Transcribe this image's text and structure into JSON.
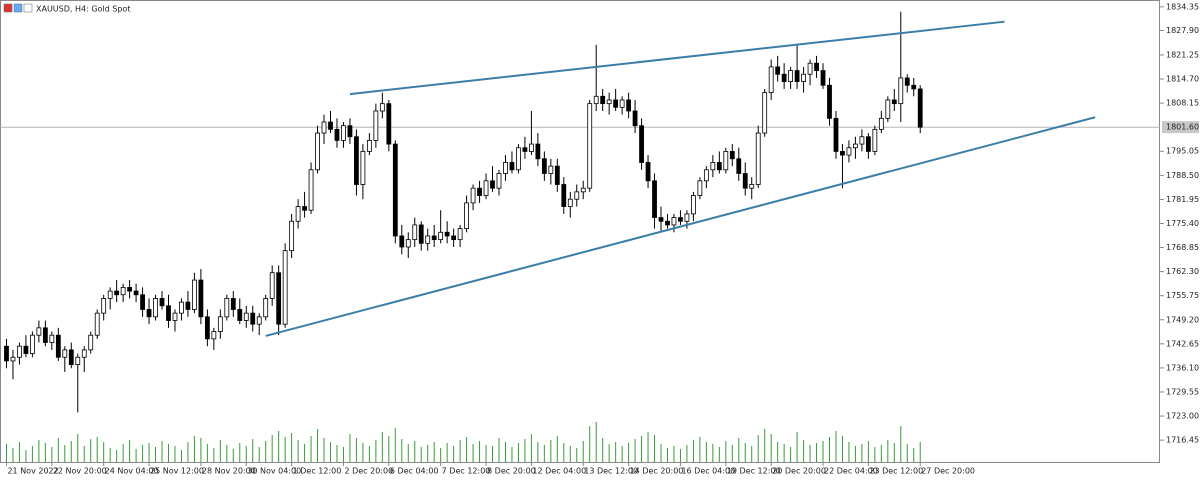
{
  "chart_data": {
    "type": "candlestick",
    "title": "XAUUSD, H4:  Gold Spot",
    "ohlc": [
      [
        1742,
        1744,
        1736,
        1738
      ],
      [
        1738,
        1741,
        1733,
        1739
      ],
      [
        1739,
        1743,
        1737,
        1742
      ],
      [
        1742,
        1745,
        1739,
        1740
      ],
      [
        1740,
        1746,
        1739,
        1745
      ],
      [
        1745,
        1749,
        1743,
        1747
      ],
      [
        1747,
        1749,
        1742,
        1743
      ],
      [
        1743,
        1746,
        1741,
        1745
      ],
      [
        1745,
        1747,
        1738,
        1739
      ],
      [
        1739,
        1742,
        1735,
        1741
      ],
      [
        1741,
        1743,
        1736,
        1737
      ],
      [
        1737,
        1740,
        1724,
        1739
      ],
      [
        1739,
        1742,
        1735,
        1741
      ],
      [
        1741,
        1746,
        1740,
        1745
      ],
      [
        1745,
        1752,
        1744,
        1751
      ],
      [
        1751,
        1756,
        1749,
        1755
      ],
      [
        1755,
        1758,
        1752,
        1757
      ],
      [
        1757,
        1760,
        1754,
        1756
      ],
      [
        1756,
        1759,
        1754,
        1758
      ],
      [
        1758,
        1760,
        1755,
        1757
      ],
      [
        1757,
        1759,
        1754,
        1756
      ],
      [
        1756,
        1758,
        1750,
        1752
      ],
      [
        1752,
        1755,
        1748,
        1750
      ],
      [
        1750,
        1756,
        1749,
        1755
      ],
      [
        1755,
        1757,
        1752,
        1753
      ],
      [
        1753,
        1756,
        1747,
        1749
      ],
      [
        1749,
        1752,
        1746,
        1751
      ],
      [
        1751,
        1755,
        1749,
        1754
      ],
      [
        1754,
        1757,
        1750,
        1752
      ],
      [
        1752,
        1762,
        1751,
        1760
      ],
      [
        1760,
        1763,
        1748,
        1750
      ],
      [
        1750,
        1752,
        1742,
        1744
      ],
      [
        1744,
        1747,
        1741,
        1746
      ],
      [
        1746,
        1752,
        1744,
        1750
      ],
      [
        1750,
        1756,
        1749,
        1755
      ],
      [
        1755,
        1757,
        1750,
        1752
      ],
      [
        1752,
        1755,
        1748,
        1749
      ],
      [
        1749,
        1753,
        1747,
        1751
      ],
      [
        1751,
        1753,
        1746,
        1748
      ],
      [
        1748,
        1751,
        1745,
        1750
      ],
      [
        1750,
        1756,
        1749,
        1755
      ],
      [
        1755,
        1764,
        1753,
        1762
      ],
      [
        1762,
        1764,
        1745,
        1748
      ],
      [
        1748,
        1770,
        1747,
        1768
      ],
      [
        1768,
        1778,
        1766,
        1776
      ],
      [
        1776,
        1782,
        1774,
        1780
      ],
      [
        1780,
        1784,
        1777,
        1779
      ],
      [
        1779,
        1792,
        1778,
        1790
      ],
      [
        1790,
        1802,
        1789,
        1800
      ],
      [
        1800,
        1805,
        1797,
        1803
      ],
      [
        1803,
        1806,
        1800,
        1801
      ],
      [
        1801,
        1804,
        1796,
        1798
      ],
      [
        1798,
        1803,
        1796,
        1802
      ],
      [
        1802,
        1804,
        1797,
        1799
      ],
      [
        1799,
        1801,
        1783,
        1786
      ],
      [
        1786,
        1797,
        1782,
        1795
      ],
      [
        1795,
        1800,
        1794,
        1798
      ],
      [
        1798,
        1808,
        1796,
        1806
      ],
      [
        1806,
        1811,
        1804,
        1808
      ],
      [
        1808,
        1809,
        1795,
        1797
      ],
      [
        1797,
        1798,
        1770,
        1772
      ],
      [
        1772,
        1775,
        1767,
        1769
      ],
      [
        1769,
        1773,
        1766,
        1771
      ],
      [
        1771,
        1777,
        1769,
        1775
      ],
      [
        1775,
        1776,
        1768,
        1770
      ],
      [
        1770,
        1774,
        1768,
        1772
      ],
      [
        1772,
        1775,
        1769,
        1771
      ],
      [
        1771,
        1779,
        1770,
        1773
      ],
      [
        1773,
        1776,
        1770,
        1772
      ],
      [
        1772,
        1774,
        1769,
        1771
      ],
      [
        1771,
        1775,
        1769,
        1774
      ],
      [
        1774,
        1783,
        1773,
        1781
      ],
      [
        1781,
        1786,
        1779,
        1785
      ],
      [
        1785,
        1787,
        1781,
        1783
      ],
      [
        1783,
        1789,
        1782,
        1787
      ],
      [
        1787,
        1791,
        1784,
        1785
      ],
      [
        1785,
        1790,
        1783,
        1789
      ],
      [
        1789,
        1794,
        1787,
        1792
      ],
      [
        1792,
        1795,
        1789,
        1790
      ],
      [
        1790,
        1797,
        1789,
        1796
      ],
      [
        1796,
        1799,
        1793,
        1795
      ],
      [
        1795,
        1806,
        1794,
        1797
      ],
      [
        1797,
        1800,
        1791,
        1793
      ],
      [
        1793,
        1795,
        1787,
        1789
      ],
      [
        1789,
        1793,
        1786,
        1791
      ],
      [
        1791,
        1793,
        1784,
        1786
      ],
      [
        1786,
        1788,
        1778,
        1780
      ],
      [
        1780,
        1784,
        1777,
        1782
      ],
      [
        1782,
        1786,
        1780,
        1784
      ],
      [
        1784,
        1787,
        1782,
        1785
      ],
      [
        1785,
        1809,
        1784,
        1808
      ],
      [
        1808,
        1824,
        1806,
        1810
      ],
      [
        1810,
        1812,
        1806,
        1808
      ],
      [
        1808,
        1811,
        1805,
        1809
      ],
      [
        1809,
        1812,
        1806,
        1807
      ],
      [
        1807,
        1810,
        1805,
        1809
      ],
      [
        1809,
        1811,
        1804,
        1806
      ],
      [
        1806,
        1809,
        1800,
        1802
      ],
      [
        1802,
        1804,
        1790,
        1792
      ],
      [
        1792,
        1794,
        1785,
        1787
      ],
      [
        1787,
        1789,
        1774,
        1777
      ],
      [
        1777,
        1780,
        1773,
        1776
      ],
      [
        1776,
        1778,
        1774,
        1775
      ],
      [
        1775,
        1778,
        1773,
        1777
      ],
      [
        1777,
        1779,
        1775,
        1776
      ],
      [
        1776,
        1779,
        1774,
        1778
      ],
      [
        1778,
        1784,
        1776,
        1783
      ],
      [
        1783,
        1788,
        1782,
        1787
      ],
      [
        1787,
        1791,
        1785,
        1790
      ],
      [
        1790,
        1794,
        1788,
        1792
      ],
      [
        1792,
        1795,
        1789,
        1790
      ],
      [
        1790,
        1796,
        1789,
        1795
      ],
      [
        1795,
        1797,
        1791,
        1793
      ],
      [
        1793,
        1796,
        1787,
        1789
      ],
      [
        1789,
        1792,
        1783,
        1785
      ],
      [
        1785,
        1788,
        1782,
        1786
      ],
      [
        1786,
        1802,
        1785,
        1800
      ],
      [
        1800,
        1812,
        1799,
        1811
      ],
      [
        1811,
        1820,
        1809,
        1818
      ],
      [
        1818,
        1821,
        1814,
        1816
      ],
      [
        1816,
        1819,
        1812,
        1814
      ],
      [
        1814,
        1818,
        1812,
        1817
      ],
      [
        1817,
        1824,
        1812,
        1814
      ],
      [
        1814,
        1818,
        1811,
        1816
      ],
      [
        1816,
        1820,
        1813,
        1819
      ],
      [
        1819,
        1821,
        1815,
        1817
      ],
      [
        1817,
        1819,
        1812,
        1813
      ],
      [
        1813,
        1815,
        1802,
        1804
      ],
      [
        1804,
        1806,
        1793,
        1795
      ],
      [
        1795,
        1797,
        1785,
        1794
      ],
      [
        1794,
        1798,
        1792,
        1796
      ],
      [
        1796,
        1799,
        1793,
        1797
      ],
      [
        1797,
        1801,
        1795,
        1799
      ],
      [
        1799,
        1800,
        1793,
        1795
      ],
      [
        1795,
        1802,
        1794,
        1801
      ],
      [
        1801,
        1806,
        1800,
        1804
      ],
      [
        1804,
        1810,
        1803,
        1809
      ],
      [
        1809,
        1812,
        1806,
        1808
      ],
      [
        1808,
        1833,
        1803,
        1815
      ],
      [
        1815,
        1816,
        1811,
        1813
      ],
      [
        1813,
        1815,
        1810,
        1812
      ],
      [
        1812,
        1813,
        1800,
        1801.6
      ]
    ],
    "volumes": [
      18000,
      14000,
      20000,
      12000,
      16000,
      22000,
      19000,
      15000,
      24000,
      17000,
      21000,
      28000,
      16000,
      23000,
      25000,
      20000,
      14000,
      12000,
      18000,
      22000,
      13000,
      17000,
      19000,
      15000,
      21000,
      18000,
      16000,
      12000,
      20000,
      26000,
      24000,
      18000,
      14000,
      22000,
      17000,
      13000,
      19000,
      16000,
      23000,
      15000,
      21000,
      27000,
      31000,
      25000,
      29000,
      22000,
      18000,
      26000,
      33000,
      24000,
      20000,
      17000,
      15000,
      28000,
      24000,
      19000,
      16000,
      22000,
      30000,
      26000,
      34000,
      23000,
      18000,
      21000,
      15000,
      17000,
      20000,
      14000,
      19000,
      16000,
      22000,
      25000,
      18000,
      21000,
      17000,
      16000,
      24000,
      20000,
      15000,
      19000,
      23000,
      28000,
      20000,
      17000,
      22000,
      26000,
      19000,
      16000,
      14000,
      21000,
      36000,
      40000,
      24000,
      18000,
      20000,
      16000,
      19000,
      23000,
      26000,
      30000,
      27000,
      18000,
      14000,
      16000,
      13000,
      17000,
      22000,
      25000,
      20000,
      18000,
      15000,
      21000,
      17000,
      24000,
      19000,
      16000,
      27000,
      33000,
      28000,
      20000,
      18000,
      15000,
      30000,
      22000,
      17000,
      19000,
      21000,
      25000,
      31000,
      26000,
      20000,
      16000,
      18000,
      21000,
      15000,
      17000,
      22000,
      19000,
      36000,
      18000,
      14000,
      20000
    ],
    "xlim": [
      -1,
      178
    ],
    "xticks": [
      {
        "value": 0,
        "label": "21 Nov 2022"
      },
      {
        "value": 7,
        "label": "22 Nov 20:00"
      },
      {
        "value": 15,
        "label": "24 Nov 04:00"
      },
      {
        "value": 22,
        "label": "25 Nov 12:00"
      },
      {
        "value": 30,
        "label": "28 Nov 20:00"
      },
      {
        "value": 37,
        "label": "30 Nov 04:00"
      },
      {
        "value": 44,
        "label": "1 Dec 12:00"
      },
      {
        "value": 52,
        "label": "2 Dec 20:00"
      },
      {
        "value": 59,
        "label": "6 Dec 04:00"
      },
      {
        "value": 67,
        "label": "7 Dec 12:00"
      },
      {
        "value": 74,
        "label": "8 Dec 20:00"
      },
      {
        "value": 81,
        "label": "12 Dec 04:00"
      },
      {
        "value": 89,
        "label": "13 Dec 12:00"
      },
      {
        "value": 96,
        "label": "14 Dec 20:00"
      },
      {
        "value": 104,
        "label": "16 Dec 04:00"
      },
      {
        "value": 111,
        "label": "19 Dec 12:00"
      },
      {
        "value": 118,
        "label": "20 Dec 20:00"
      },
      {
        "value": 126,
        "label": "22 Dec 04:00"
      },
      {
        "value": 133,
        "label": "23 Dec 12:00"
      },
      {
        "value": 141,
        "label": "27 Dec 20:00"
      }
    ],
    "ylim": [
      1710.5,
      1836.2
    ],
    "yticks": [
      1834.35,
      {
        "value": 1827.9,
        "label": "1827.90"
      },
      1821.25,
      {
        "value": 1814.7,
        "label": "1814.70"
      },
      1808.15,
      1795.05,
      {
        "value": 1788.5,
        "label": "1788.50"
      },
      1781.95,
      {
        "value": 1775.4,
        "label": "1775.40"
      },
      1768.85,
      {
        "value": 1762.3,
        "label": "1762.30"
      },
      1755.75,
      {
        "value": 1749.2,
        "label": "1749.20"
      },
      1742.65,
      {
        "value": 1736.1,
        "label": "1736.10"
      },
      1729.55,
      {
        "value": 1723,
        "label": "1723.00"
      },
      1716.45
    ],
    "current_price": {
      "value": 1801.6,
      "label": "1801.60"
    },
    "trendlines": [
      {
        "x": [
          53,
          154
        ],
        "y": [
          1810.6,
          1830.3
        ]
      },
      {
        "x": [
          40,
          168
        ],
        "y": [
          1744.8,
          1804.3
        ]
      }
    ],
    "up_color": "#ffffff",
    "down_color": "#000000",
    "volume_color": "#3a9a3a",
    "trendline_color": "#3b7ea8"
  }
}
